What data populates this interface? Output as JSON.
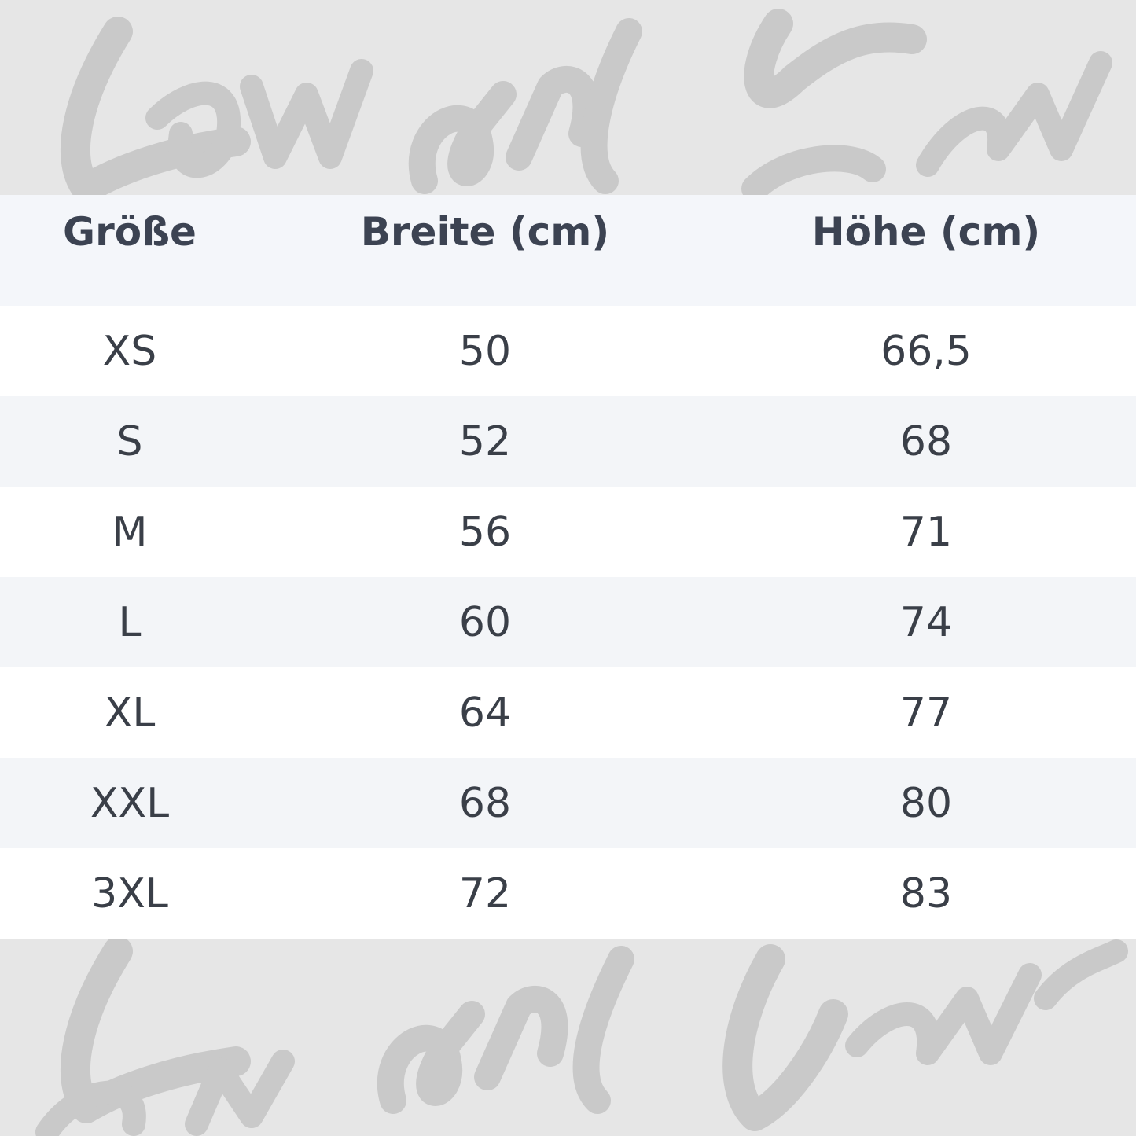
{
  "watermark": "Low and Lower",
  "table": {
    "headers": [
      "Größe",
      "Breite (cm)",
      "Höhe (cm)"
    ],
    "rows": [
      [
        "XS",
        "50",
        "66,5"
      ],
      [
        "S",
        "52",
        "68"
      ],
      [
        "M",
        "56",
        "71"
      ],
      [
        "L",
        "60",
        "74"
      ],
      [
        "XL",
        "64",
        "77"
      ],
      [
        "XXL",
        "68",
        "80"
      ],
      [
        "3XL",
        "72",
        "83"
      ]
    ]
  }
}
